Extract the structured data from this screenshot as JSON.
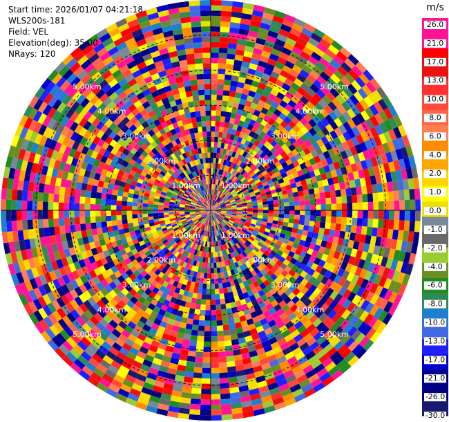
{
  "header": {
    "start_time": "Start time: 2026/01/07 04:21:18",
    "instrument": "WLS200s-181",
    "field": "Field: VEL",
    "elevation": "Elevation(deg): 35.00",
    "nrays": "NRays: 120"
  },
  "colorbar": {
    "unit": "m/s",
    "ticks": [
      "26.0",
      "21.0",
      "17.0",
      "13.0",
      "10.0",
      "8.0",
      "6.0",
      "4.0",
      "2.0",
      "1.0",
      "0.0",
      "-1.0",
      "-2.0",
      "-4.0",
      "-6.0",
      "-8.0",
      "-10.0",
      "-13.0",
      "-17.0",
      "-21.0",
      "-26.0",
      "-30.0"
    ],
    "bins": [
      {
        "color": "#ff1493"
      },
      {
        "color": "#ff1493"
      },
      {
        "color": "#ff0000"
      },
      {
        "color": "#ee1111"
      },
      {
        "color": "#ff3030"
      },
      {
        "color": "#ff4a3a"
      },
      {
        "color": "#ff6347"
      },
      {
        "color": "#ff7f50"
      },
      {
        "color": "#ff8c00"
      },
      {
        "color": "#ffa500"
      },
      {
        "color": "#ffd700"
      },
      {
        "color": "#ffff00"
      },
      {
        "color": "#f0e000"
      },
      {
        "color": "#778899"
      },
      {
        "color": "#696969"
      },
      {
        "color": "#9acd32"
      },
      {
        "color": "#6b8e23"
      },
      {
        "color": "#228b22"
      },
      {
        "color": "#2e8b57"
      },
      {
        "color": "#1e7fd0"
      },
      {
        "color": "#4169e1"
      },
      {
        "color": "#2020ff"
      },
      {
        "color": "#0000cd"
      },
      {
        "color": "#00008b"
      },
      {
        "color": "#000080"
      },
      {
        "color": "#191970"
      }
    ]
  },
  "chart_data": {
    "type": "ppi",
    "field": "VEL",
    "units": "m/s",
    "n_rays": 120,
    "elevation_deg": 35.0,
    "range_rings_km": [
      1.0,
      2.0,
      3.0,
      4.0,
      5.0
    ],
    "range_labels": [
      "1.00km",
      "2.00km",
      "3.00km",
      "4.00km",
      "5.00km"
    ],
    "max_range_km": 6.0,
    "n_gates": 40,
    "seed": 181
  }
}
